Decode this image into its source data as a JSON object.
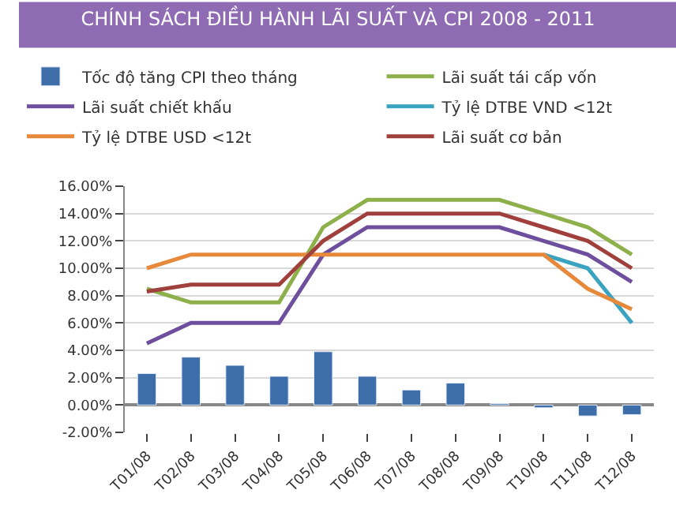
{
  "chart_data": {
    "type": "bar",
    "title": "CHÍNH SÁCH ĐIỀU HÀNH LÃI SUẤT VÀ CPI 2008 - 2011",
    "categories": [
      "T01/08",
      "T02/08",
      "T03/08",
      "T04/08",
      "T05/08",
      "T06/08",
      "T07/08",
      "T08/08",
      "T09/08",
      "T10/08",
      "T11/08",
      "T12/08"
    ],
    "series": [
      {
        "name": "Tốc độ tăng CPI theo tháng",
        "color": "#3d6eaa",
        "values": [
          2.3,
          3.5,
          2.9,
          2.1,
          3.9,
          2.1,
          1.1,
          1.6,
          0.1,
          -0.2,
          -0.8,
          -0.7
        ]
      },
      {
        "name": "Lãi suất tái cấp vốn",
        "type": "line",
        "color": "#8db04a",
        "values": [
          8.5,
          7.5,
          7.5,
          7.5,
          13,
          15,
          15,
          15,
          15,
          14,
          13,
          11
        ]
      },
      {
        "name": "Lãi suất chiết khấu",
        "type": "line",
        "color": "#6e4f9e",
        "values": [
          4.5,
          6,
          6,
          6,
          11,
          13,
          13,
          13,
          13,
          12,
          11,
          9
        ]
      },
      {
        "name": "Tỷ lệ DTBE VND <12t",
        "type": "line",
        "color": "#3aa3bf",
        "values": [
          null,
          null,
          null,
          null,
          null,
          null,
          null,
          null,
          null,
          11,
          10,
          6
        ]
      },
      {
        "name": "Tỷ lệ DTBE USD <12t",
        "type": "line",
        "color": "#e6893a",
        "values": [
          10,
          11,
          11,
          11,
          11,
          11,
          11,
          11,
          11,
          11,
          8.5,
          7
        ]
      },
      {
        "name": "Lãi suất cơ bản",
        "type": "line",
        "color": "#a0403c",
        "values": [
          8.3,
          8.8,
          8.8,
          8.8,
          12,
          14,
          14,
          14,
          14,
          13,
          12,
          10
        ]
      }
    ],
    "ylim": [
      -2,
      16
    ],
    "yticks": [
      {
        "value": -2,
        "label": "-2.00%"
      },
      {
        "value": 0,
        "label": "0.00%"
      },
      {
        "value": 2,
        "label": "2.00%"
      },
      {
        "value": 4,
        "label": "4.00%"
      },
      {
        "value": 6,
        "label": "6.00%"
      },
      {
        "value": 8,
        "label": "8.00%"
      },
      {
        "value": 10,
        "label": "10.00%"
      },
      {
        "value": 12,
        "label": "12.00%"
      },
      {
        "value": 14,
        "label": "14.00%"
      },
      {
        "value": 16,
        "label": "16.00%"
      }
    ],
    "grid": "y",
    "legend": "top",
    "marker": "none",
    "line_style": "solid"
  }
}
